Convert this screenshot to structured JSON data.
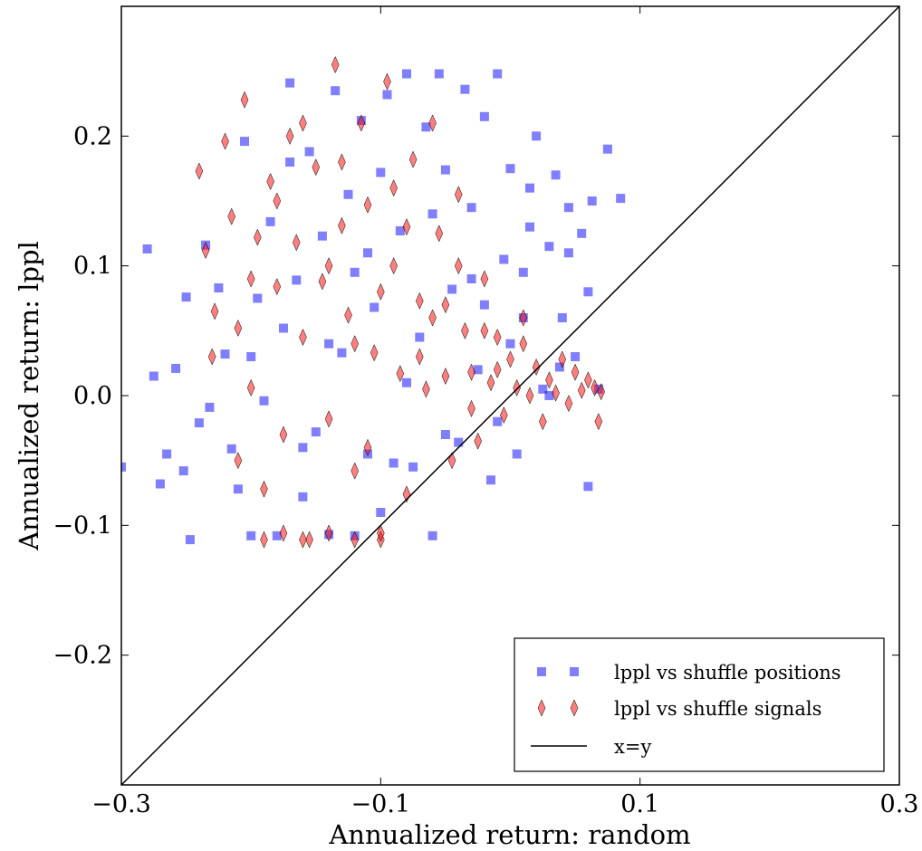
{
  "chart_data": {
    "type": "scatter",
    "title": "",
    "xlabel": "Annualized return: random",
    "ylabel": "Annualized return: lppl",
    "xlim": [
      -0.3,
      0.3
    ],
    "ylim": [
      -0.3,
      0.3
    ],
    "xticks": [
      -0.3,
      -0.1,
      0.1,
      0.3
    ],
    "xtick_labels": [
      "−0.3",
      "−0.1",
      "0.1",
      "0.3"
    ],
    "yticks": [
      -0.2,
      -0.1,
      0.0,
      0.1,
      0.2
    ],
    "ytick_labels": [
      "−0.2",
      "−0.1",
      "0.0",
      "0.1",
      "0.2"
    ],
    "grid": false,
    "legend_position": "bottom-right",
    "series": [
      {
        "name": "lppl vs shuffle positions",
        "marker": "square",
        "color": "#0000ff",
        "approx_count": 1500,
        "points": [
          [
            -0.3,
            -0.055
          ],
          [
            -0.28,
            0.113
          ],
          [
            -0.275,
            0.015
          ],
          [
            -0.27,
            -0.068
          ],
          [
            -0.265,
            -0.045
          ],
          [
            -0.258,
            0.021
          ],
          [
            -0.252,
            -0.058
          ],
          [
            -0.25,
            0.076
          ],
          [
            -0.247,
            -0.111
          ],
          [
            -0.24,
            -0.021
          ],
          [
            -0.235,
            0.116
          ],
          [
            -0.232,
            -0.009
          ],
          [
            -0.225,
            0.083
          ],
          [
            -0.22,
            0.032
          ],
          [
            -0.215,
            -0.041
          ],
          [
            -0.21,
            -0.072
          ],
          [
            -0.205,
            0.196
          ],
          [
            -0.2,
            -0.108
          ],
          [
            -0.195,
            0.075
          ],
          [
            -0.19,
            -0.004
          ],
          [
            -0.185,
            0.134
          ],
          [
            -0.18,
            -0.108
          ],
          [
            -0.175,
            0.052
          ],
          [
            -0.17,
            0.241
          ],
          [
            -0.165,
            0.089
          ],
          [
            -0.16,
            -0.078
          ],
          [
            -0.155,
            0.188
          ],
          [
            -0.15,
            -0.028
          ],
          [
            -0.145,
            0.123
          ],
          [
            -0.14,
            -0.107
          ],
          [
            -0.135,
            0.235
          ],
          [
            -0.13,
            0.033
          ],
          [
            -0.125,
            0.155
          ],
          [
            -0.12,
            -0.108
          ],
          [
            -0.115,
            0.212
          ],
          [
            -0.11,
            -0.045
          ],
          [
            -0.105,
            0.068
          ],
          [
            -0.1,
            0.172
          ],
          [
            -0.095,
            0.232
          ],
          [
            -0.09,
            -0.052
          ],
          [
            -0.085,
            0.127
          ],
          [
            -0.08,
            0.248
          ],
          [
            -0.075,
            -0.055
          ],
          [
            -0.07,
            0.045
          ],
          [
            -0.065,
            0.207
          ],
          [
            -0.06,
            -0.108
          ],
          [
            -0.055,
            0.248
          ],
          [
            -0.05,
            0.174
          ],
          [
            -0.045,
            0.082
          ],
          [
            -0.04,
            -0.036
          ],
          [
            -0.035,
            0.236
          ],
          [
            -0.03,
            0.145
          ],
          [
            -0.025,
            0.02
          ],
          [
            -0.02,
            0.215
          ],
          [
            -0.015,
            -0.065
          ],
          [
            -0.01,
            0.248
          ],
          [
            -0.005,
            0.105
          ],
          [
            0.0,
            0.175
          ],
          [
            0.005,
            -0.045
          ],
          [
            0.01,
            0.06
          ],
          [
            0.015,
            0.13
          ],
          [
            0.02,
            0.2
          ],
          [
            0.025,
            0.005
          ],
          [
            0.03,
            0.115
          ],
          [
            0.035,
            0.17
          ],
          [
            0.04,
            0.06
          ],
          [
            0.045,
            0.145
          ],
          [
            0.05,
            0.03
          ],
          [
            0.055,
            0.125
          ],
          [
            0.06,
            -0.07
          ],
          [
            0.063,
            0.15
          ],
          [
            0.068,
            0.005
          ],
          [
            0.075,
            0.19
          ],
          [
            0.06,
            0.08
          ],
          [
            0.045,
            0.11
          ],
          [
            0.03,
            -0.0
          ],
          [
            0.015,
            0.16
          ],
          [
            0.0,
            0.04
          ],
          [
            -0.01,
            -0.02
          ],
          [
            -0.03,
            0.09
          ],
          [
            -0.06,
            0.14
          ],
          [
            -0.08,
            0.01
          ],
          [
            -0.11,
            0.11
          ],
          [
            -0.14,
            0.04
          ],
          [
            -0.17,
            0.18
          ],
          [
            -0.2,
            0.03
          ],
          [
            0.085,
            0.152
          ],
          [
            -0.16,
            -0.04
          ],
          [
            -0.1,
            -0.09
          ],
          [
            -0.05,
            -0.03
          ],
          [
            -0.02,
            0.07
          ],
          [
            0.01,
            0.095
          ],
          [
            0.038,
            0.022
          ],
          [
            -0.12,
            0.095
          ]
        ]
      },
      {
        "name": "lppl vs shuffle signals",
        "marker": "diamond",
        "color": "#ff0000",
        "approx_count": 1500,
        "points": [
          [
            -0.24,
            0.173
          ],
          [
            -0.235,
            0.112
          ],
          [
            -0.228,
            0.065
          ],
          [
            -0.22,
            0.196
          ],
          [
            -0.215,
            0.138
          ],
          [
            -0.21,
            0.052
          ],
          [
            -0.205,
            0.228
          ],
          [
            -0.2,
            0.006
          ],
          [
            -0.195,
            0.122
          ],
          [
            -0.19,
            -0.072
          ],
          [
            -0.185,
            0.165
          ],
          [
            -0.18,
            0.084
          ],
          [
            -0.175,
            -0.03
          ],
          [
            -0.17,
            0.2
          ],
          [
            -0.165,
            0.118
          ],
          [
            -0.16,
            0.045
          ],
          [
            -0.155,
            -0.111
          ],
          [
            -0.15,
            0.176
          ],
          [
            -0.145,
            0.088
          ],
          [
            -0.14,
            -0.018
          ],
          [
            -0.135,
            0.255
          ],
          [
            -0.13,
            0.131
          ],
          [
            -0.125,
            0.062
          ],
          [
            -0.12,
            -0.058
          ],
          [
            -0.115,
            0.21
          ],
          [
            -0.11,
            0.147
          ],
          [
            -0.105,
            0.033
          ],
          [
            -0.1,
            -0.111
          ],
          [
            -0.095,
            0.242
          ],
          [
            -0.09,
            0.1
          ],
          [
            -0.085,
            0.017
          ],
          [
            -0.08,
            -0.076
          ],
          [
            -0.075,
            0.182
          ],
          [
            -0.07,
            0.073
          ],
          [
            -0.065,
            0.005
          ],
          [
            -0.06,
            0.21
          ],
          [
            -0.055,
            0.125
          ],
          [
            -0.05,
            0.015
          ],
          [
            -0.045,
            -0.05
          ],
          [
            -0.04,
            0.155
          ],
          [
            -0.035,
            0.05
          ],
          [
            -0.03,
            0.018
          ],
          [
            -0.025,
            -0.035
          ],
          [
            -0.02,
            0.09
          ],
          [
            -0.015,
            0.01
          ],
          [
            -0.01,
            0.045
          ],
          [
            -0.005,
            -0.015
          ],
          [
            0.0,
            0.028
          ],
          [
            0.005,
            0.006
          ],
          [
            0.01,
            0.04
          ],
          [
            0.015,
            0.0
          ],
          [
            0.02,
            0.022
          ],
          [
            0.025,
            -0.02
          ],
          [
            0.03,
            0.012
          ],
          [
            0.035,
            0.002
          ],
          [
            0.04,
            0.028
          ],
          [
            0.045,
            -0.006
          ],
          [
            0.05,
            0.018
          ],
          [
            0.055,
            0.004
          ],
          [
            0.06,
            0.012
          ],
          [
            0.065,
            0.006
          ],
          [
            0.07,
            0.003
          ],
          [
            0.068,
            -0.02
          ],
          [
            -0.19,
            -0.111
          ],
          [
            -0.175,
            -0.106
          ],
          [
            -0.16,
            -0.111
          ],
          [
            -0.14,
            -0.106
          ],
          [
            -0.12,
            -0.111
          ],
          [
            -0.1,
            -0.106
          ],
          [
            -0.21,
            -0.05
          ],
          [
            -0.23,
            0.03
          ],
          [
            -0.2,
            0.09
          ],
          [
            -0.18,
            0.15
          ],
          [
            -0.16,
            0.21
          ],
          [
            -0.14,
            0.1
          ],
          [
            -0.12,
            0.04
          ],
          [
            -0.1,
            0.08
          ],
          [
            -0.08,
            0.13
          ],
          [
            -0.06,
            0.06
          ],
          [
            -0.04,
            0.1
          ],
          [
            -0.02,
            0.05
          ],
          [
            -0.13,
            0.18
          ],
          [
            -0.11,
            -0.04
          ],
          [
            -0.09,
            0.16
          ],
          [
            -0.07,
            0.03
          ],
          [
            -0.05,
            0.07
          ],
          [
            -0.03,
            -0.01
          ],
          [
            -0.01,
            0.02
          ],
          [
            0.01,
            0.06
          ]
        ]
      },
      {
        "name": "x=y",
        "marker": "line",
        "color": "#000000",
        "points": [
          [
            -0.3,
            -0.3
          ],
          [
            0.3,
            0.3
          ]
        ]
      }
    ]
  }
}
